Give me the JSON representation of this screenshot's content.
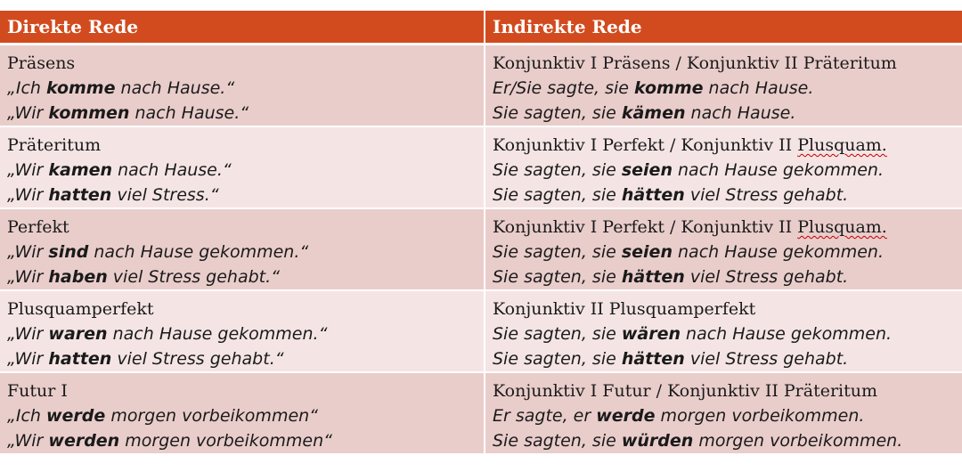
{
  "header": {
    "col1": "Direkte Rede",
    "col2": "Indirekte Rede"
  },
  "rows": [
    {
      "direct": {
        "tense": "Präsens",
        "ex1": {
          "pre": "„Ich ",
          "bold": "komme",
          "post": " nach Hause.“"
        },
        "ex2": {
          "pre": "„Wir ",
          "bold": "kommen",
          "post": " nach Hause.“"
        }
      },
      "indirect": {
        "tense_a": "Konjunktiv I Präsens / Konjunktiv II Präteritum",
        "tense_b": "",
        "ex1": {
          "pre": "Er/Sie sagte, sie ",
          "bold": "komme",
          "post": " nach Hause."
        },
        "ex2": {
          "pre": "Sie sagten, sie ",
          "bold": "kämen",
          "post": " nach Hause."
        }
      }
    },
    {
      "direct": {
        "tense": "Präteritum",
        "ex1": {
          "pre": "„Wir ",
          "bold": "kamen",
          "post": " nach Hause.“"
        },
        "ex2": {
          "pre": "„Wir ",
          "bold": "hatten",
          "post": " viel Stress.“"
        }
      },
      "indirect": {
        "tense_a": "Konjunktiv I Perfekt / Konjunktiv II ",
        "tense_b": "Plusquam.",
        "ex1": {
          "pre": "Sie sagten, sie ",
          "bold": "seien",
          "post": " nach Hause gekommen."
        },
        "ex2": {
          "pre": "Sie sagten, sie ",
          "bold": "hätten",
          "post": " viel Stress gehabt."
        }
      }
    },
    {
      "direct": {
        "tense": "Perfekt",
        "ex1": {
          "pre": "„Wir ",
          "bold": "sind",
          "post": " nach Hause gekommen.“"
        },
        "ex2": {
          "pre": "„Wir ",
          "bold": "haben",
          "post": " viel Stress gehabt.“"
        }
      },
      "indirect": {
        "tense_a": "Konjunktiv I Perfekt / Konjunktiv II ",
        "tense_b": "Plusquam.",
        "ex1": {
          "pre": "Sie sagten, sie ",
          "bold": "seien",
          "post": " nach Hause gekommen."
        },
        "ex2": {
          "pre": "Sie sagten, sie ",
          "bold": "hätten",
          "post": " viel Stress gehabt."
        }
      }
    },
    {
      "direct": {
        "tense": "Plusquamperfekt",
        "ex1": {
          "pre": "„Wir ",
          "bold": "waren",
          "post": " nach Hause gekommen.“"
        },
        "ex2": {
          "pre": "„Wir ",
          "bold": "hatten",
          "post": " viel Stress gehabt.“"
        }
      },
      "indirect": {
        "tense_a": "Konjunktiv II Plusquamperfekt",
        "tense_b": "",
        "ex1": {
          "pre": "Sie sagten, sie ",
          "bold": "wären",
          "post": " nach Hause gekommen."
        },
        "ex2": {
          "pre": "Sie sagten, sie ",
          "bold": "hätten",
          "post": " viel Stress gehabt."
        }
      }
    },
    {
      "direct": {
        "tense": "Futur I",
        "ex1": {
          "pre": "„Ich ",
          "bold": "werde",
          "post": " morgen vorbeikommen“"
        },
        "ex2": {
          "pre": "„Wir ",
          "bold": "werden",
          "post": " morgen vorbeikommen“"
        }
      },
      "indirect": {
        "tense_a": "Konjunktiv I Futur / Konjunktiv II Präteritum",
        "tense_b": "",
        "ex1": {
          "pre": "Er sagte, er ",
          "bold": "werde",
          "post": " morgen vorbeikommen."
        },
        "ex2": {
          "pre": "Sie sagten, sie ",
          "bold": "würden",
          "post": " morgen vorbeikommen."
        }
      }
    }
  ]
}
